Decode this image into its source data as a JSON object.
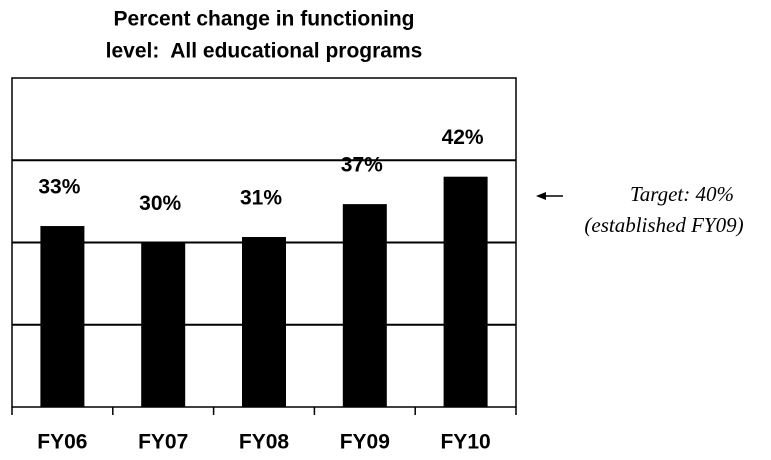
{
  "chart_data": {
    "type": "bar",
    "title": [
      "Percent change in functioning",
      "level:  All educational programs"
    ],
    "categories": [
      "FY06",
      "FY07",
      "FY08",
      "FY09",
      "FY10"
    ],
    "values": [
      33,
      30,
      31,
      37,
      42
    ],
    "value_labels": [
      "33%",
      "30%",
      "31%",
      "37%",
      "42%"
    ],
    "color": "#000000",
    "ylim": [
      0,
      60
    ],
    "gridlines": [
      15,
      30,
      45
    ],
    "annotations": [
      "Target: 40%",
      "(established FY09)"
    ]
  }
}
